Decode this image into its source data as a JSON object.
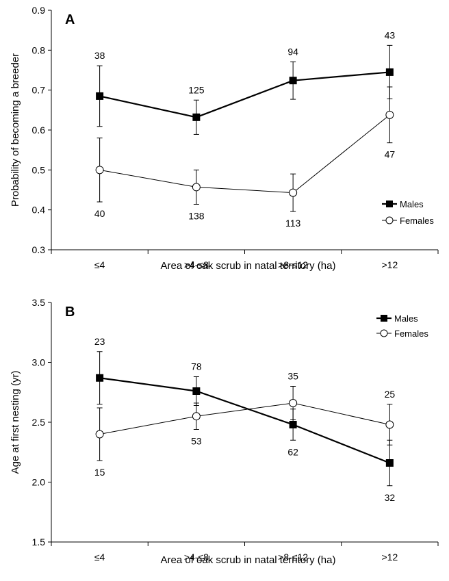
{
  "chart_data": [
    {
      "panel": "A",
      "type": "line",
      "categories": [
        "≤4",
        ">4-≤8",
        ">8-≤12",
        ">12"
      ],
      "xlabel": "Area of oak scrub in natal territory (ha)",
      "ylabel": "Probability of becoming a breeder",
      "ylim": [
        0.3,
        0.9
      ],
      "yticks": [
        "0.3",
        "0.4",
        "0.5",
        "0.6",
        "0.7",
        "0.8",
        "0.9"
      ],
      "legend_position": "bottom-right",
      "series": [
        {
          "name": "Males",
          "marker": "filled-square",
          "values": [
            0.685,
            0.632,
            0.724,
            0.745
          ],
          "error": [
            0.076,
            0.043,
            0.047,
            0.067
          ],
          "n": [
            "38",
            "125",
            "94",
            "43"
          ],
          "n_position": [
            "above",
            "above",
            "above",
            "above"
          ]
        },
        {
          "name": "Females",
          "marker": "open-circle",
          "values": [
            0.5,
            0.457,
            0.443,
            0.638
          ],
          "error": [
            0.08,
            0.043,
            0.047,
            0.07
          ],
          "n": [
            "40",
            "138",
            "113",
            "47"
          ],
          "n_position": [
            "below",
            "below",
            "below",
            "below"
          ]
        }
      ]
    },
    {
      "panel": "B",
      "type": "line",
      "categories": [
        "≤4",
        ">4-≤8",
        ">8-≤12",
        ">12"
      ],
      "xlabel": "Area of oak scrub in natal territory (ha)",
      "ylabel": "Age at first nesting (yr)",
      "ylim": [
        1.5,
        3.5
      ],
      "yticks": [
        "1.5",
        "2.0",
        "2.5",
        "3.0",
        "3.5"
      ],
      "legend_position": "top-right",
      "series": [
        {
          "name": "Males",
          "marker": "filled-square",
          "values": [
            2.87,
            2.76,
            2.48,
            2.16
          ],
          "error": [
            0.22,
            0.12,
            0.13,
            0.19
          ],
          "n": [
            "23",
            "78",
            "62",
            "32"
          ],
          "n_position": [
            "above",
            "above",
            "below",
            "below"
          ]
        },
        {
          "name": "Females",
          "marker": "open-circle",
          "values": [
            2.4,
            2.55,
            2.66,
            2.48
          ],
          "error": [
            0.22,
            0.11,
            0.14,
            0.17
          ],
          "n": [
            "15",
            "53",
            "35",
            "25"
          ],
          "n_position": [
            "below",
            "below",
            "above",
            "above"
          ]
        }
      ]
    }
  ]
}
